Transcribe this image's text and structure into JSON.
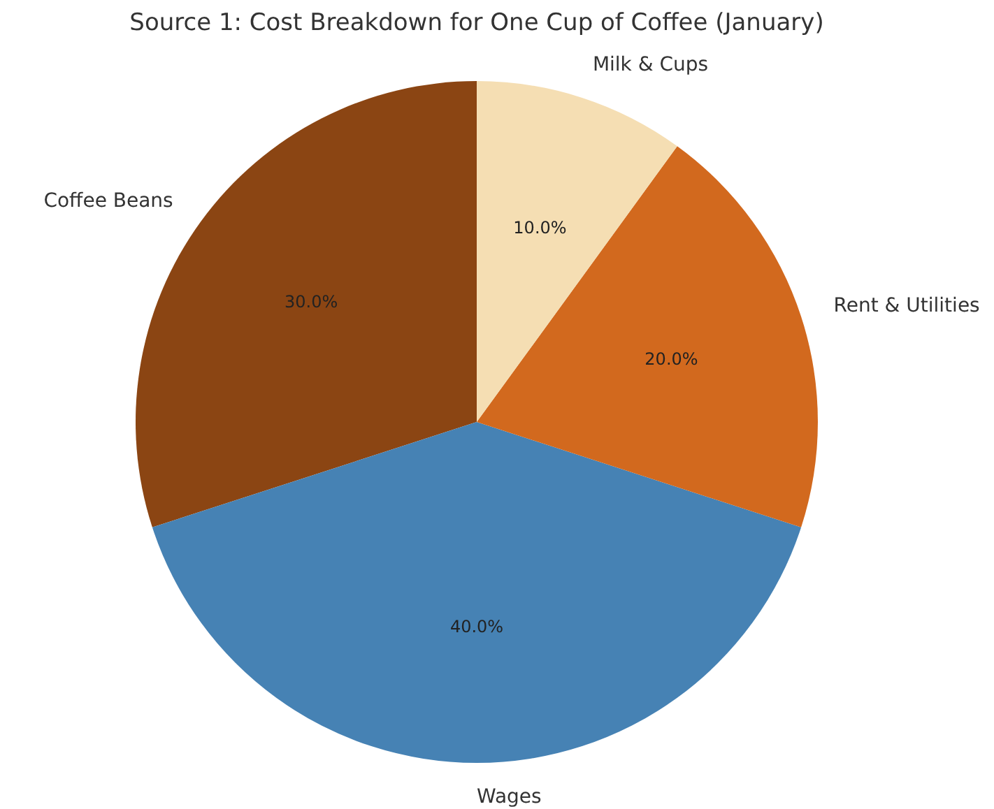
{
  "chart_data": {
    "type": "pie",
    "title": "Source 1: Cost Breakdown for One Cup of Coffee (January)",
    "categories": [
      "Coffee Beans",
      "Wages",
      "Rent & Utilities",
      "Milk & Cups"
    ],
    "values": [
      30,
      40,
      20,
      10
    ],
    "colors": [
      "#8b4513",
      "#4682b4",
      "#d2691e",
      "#f5deb3"
    ],
    "value_labels": [
      "30.0%",
      "40.0%",
      "20.0%",
      "10.0%"
    ],
    "legend": false
  }
}
